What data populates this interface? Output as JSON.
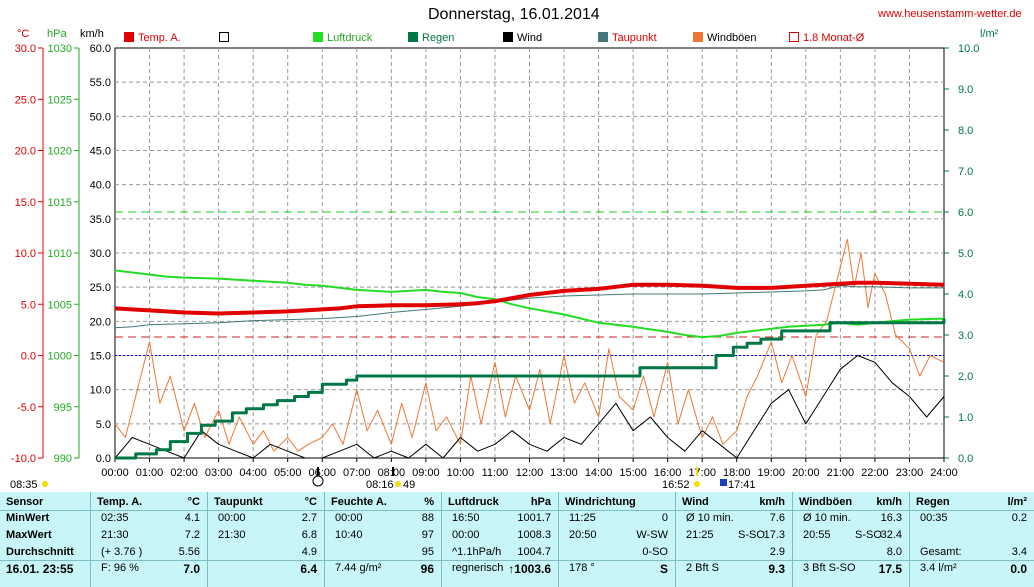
{
  "header": {
    "title": "Donnerstag, 16.01.2014",
    "site": "www.heusenstamm-wetter.de",
    "unit_temp": "°C",
    "unit_pressure": "hPa",
    "unit_wind": "km/h",
    "unit_rain": "l/m²"
  },
  "legend": [
    {
      "label": "Temp. A.",
      "color": "#e00000",
      "filled": true
    },
    {
      "label": "",
      "color": "#000000",
      "filled": false
    },
    {
      "label": "Luftdruck",
      "color": "#22dd22",
      "filled": true
    },
    {
      "label": "Regen",
      "color": "#007744",
      "filled": true
    },
    {
      "label": "Wind",
      "color": "#000000",
      "filled": true
    },
    {
      "label": "Taupunkt",
      "color": "#447777",
      "filled": true
    },
    {
      "label": "Windböen",
      "color": "#ee7733",
      "filled": true
    },
    {
      "label": "1.8 Monat-Ø",
      "color": "#e00000",
      "filled": false
    }
  ],
  "chart_data": {
    "type": "line",
    "x_ticks": [
      "00:00",
      "01:00",
      "02:00",
      "03:00",
      "04:00",
      "05:00",
      "06:00",
      "07:00",
      "08:00",
      "09:00",
      "10:00",
      "11:00",
      "12:00",
      "13:00",
      "14:00",
      "15:00",
      "16:00",
      "17:00",
      "18:00",
      "19:00",
      "20:00",
      "21:00",
      "22:00",
      "23:00",
      "24:00"
    ],
    "axes": {
      "temp": {
        "label": "°C",
        "range": [
          -10,
          30
        ],
        "ticks": [
          "30.0",
          "25.0",
          "20.0",
          "15.0",
          "10.0",
          "5.0",
          "0.0",
          "-5.0",
          "-10.0"
        ]
      },
      "pressure": {
        "label": "hPa",
        "range": [
          990,
          1030
        ],
        "ticks": [
          "1030",
          "1025",
          "1020",
          "1015",
          "1010",
          "1005",
          "1000",
          "995",
          "990"
        ]
      },
      "wind": {
        "label": "km/h",
        "range": [
          0,
          60
        ],
        "ticks": [
          "60.0",
          "55.0",
          "50.0",
          "45.0",
          "40.0",
          "35.0",
          "30.0",
          "25.0",
          "20.0",
          "15.0",
          "10.0",
          "5.0",
          "0.0"
        ]
      },
      "rain": {
        "label": "l/m²",
        "range": [
          0,
          10
        ],
        "ticks": [
          "10.0",
          "9.0",
          "8.0",
          "7.0",
          "6.0",
          "5.0",
          "4.0",
          "3.0",
          "2.0",
          "1.0",
          "0.0"
        ]
      }
    },
    "reference_lines": [
      {
        "name": "rain-6",
        "axis": "rain",
        "value": 6.0,
        "color": "#22cc22"
      },
      {
        "name": "temp-1.8",
        "axis": "temp",
        "value": 1.8,
        "color": "#cc2222"
      },
      {
        "name": "temp-0",
        "axis": "temp",
        "value": 0.0,
        "color": "#0000cc"
      }
    ],
    "series": [
      {
        "name": "Temp. A.",
        "axis": "temp",
        "color": "#e00000",
        "width": 4,
        "x": [
          0,
          1,
          2,
          3,
          4,
          5,
          6,
          6.5,
          7,
          8,
          9,
          10,
          10.5,
          11,
          11.5,
          12,
          13,
          14,
          14.5,
          15,
          16,
          17,
          18,
          19,
          20,
          20.5,
          21,
          21.5,
          22,
          23,
          24
        ],
        "y": [
          4.6,
          4.4,
          4.2,
          4.1,
          4.2,
          4.3,
          4.5,
          4.6,
          4.8,
          4.9,
          4.9,
          5.0,
          5.1,
          5.3,
          5.6,
          5.9,
          6.3,
          6.5,
          6.7,
          6.9,
          6.9,
          6.8,
          6.6,
          6.6,
          6.8,
          6.9,
          7.0,
          7.1,
          7.1,
          7.0,
          6.9
        ]
      },
      {
        "name": "Taupunkt",
        "axis": "temp",
        "color": "#447777",
        "width": 1,
        "x": [
          0,
          0.5,
          1,
          2,
          3,
          4,
          5,
          6,
          7,
          8,
          9,
          10,
          11,
          12,
          13,
          14,
          15,
          16,
          17,
          18,
          19,
          20,
          20.5,
          21,
          21.5,
          22,
          23,
          24
        ],
        "y": [
          2.7,
          2.8,
          3.0,
          3.1,
          3.2,
          3.4,
          3.5,
          3.6,
          3.8,
          4.2,
          4.5,
          4.8,
          5.2,
          5.6,
          5.8,
          5.9,
          6.0,
          6.0,
          6.0,
          6.1,
          6.2,
          6.3,
          6.4,
          6.8,
          6.7,
          6.7,
          6.6,
          6.6
        ]
      },
      {
        "name": "Luftdruck",
        "axis": "pressure",
        "color": "#22dd22",
        "width": 2,
        "x": [
          0,
          0.5,
          1,
          1.5,
          2,
          3,
          4,
          5,
          5.5,
          6,
          6.5,
          7,
          7.5,
          8,
          8.5,
          9,
          9.5,
          10,
          10.5,
          11,
          11.5,
          12,
          12.5,
          13,
          13.5,
          14,
          15,
          16,
          16.5,
          17,
          17.5,
          18,
          19,
          19.5,
          20,
          20.5,
          21,
          21.5,
          22,
          23,
          24
        ],
        "y": [
          1008.3,
          1008.1,
          1007.9,
          1007.7,
          1007.6,
          1007.5,
          1007.3,
          1007.1,
          1006.9,
          1006.8,
          1006.6,
          1006.4,
          1006.3,
          1006.2,
          1006.3,
          1006.4,
          1006.2,
          1006.1,
          1005.7,
          1005.5,
          1005.0,
          1004.6,
          1004.3,
          1004.0,
          1003.6,
          1003.2,
          1002.8,
          1002.3,
          1002.0,
          1001.8,
          1001.9,
          1002.2,
          1002.6,
          1002.8,
          1002.9,
          1003.0,
          1003.2,
          1003.0,
          1003.2,
          1003.5,
          1003.6
        ]
      },
      {
        "name": "Regen",
        "axis": "rain",
        "color": "#007744",
        "width": 3,
        "step": true,
        "x": [
          0,
          0.6,
          1.2,
          1.6,
          2.1,
          2.5,
          2.9,
          3.4,
          3.8,
          4.3,
          4.7,
          5.2,
          5.6,
          6.0,
          6.7,
          7.0,
          13.6,
          14.2,
          15.2,
          16.7,
          17.4,
          17.9,
          18.3,
          18.7,
          19.3,
          20.7,
          24
        ],
        "y": [
          0,
          0.1,
          0.2,
          0.4,
          0.6,
          0.8,
          0.9,
          1.1,
          1.2,
          1.3,
          1.4,
          1.5,
          1.6,
          1.8,
          1.9,
          2.0,
          2.0,
          2.0,
          2.2,
          2.2,
          2.5,
          2.7,
          2.8,
          2.9,
          3.1,
          3.3,
          3.4
        ]
      },
      {
        "name": "Wind",
        "axis": "wind",
        "color": "#000000",
        "width": 1,
        "x": [
          0,
          0.5,
          1,
          1.5,
          2,
          2.5,
          3,
          3.5,
          4,
          4.5,
          5,
          5.5,
          6,
          6.5,
          7,
          7.5,
          8,
          8.5,
          9,
          9.5,
          10,
          10.5,
          11,
          11.5,
          12,
          12.5,
          13,
          13.5,
          14,
          14.5,
          15,
          15.5,
          16,
          16.5,
          17,
          17.5,
          18,
          18.5,
          19,
          19.5,
          20,
          20.5,
          21,
          21.5,
          22,
          22.5,
          23,
          23.5,
          24
        ],
        "y": [
          0,
          3,
          2,
          1,
          0,
          4,
          2,
          1,
          0,
          2,
          1,
          0,
          0,
          1,
          2,
          0,
          1,
          0,
          2,
          0,
          3,
          1,
          2,
          4,
          2,
          1,
          3,
          2,
          5,
          8,
          4,
          6,
          3,
          1,
          4,
          2,
          0,
          4,
          8,
          10,
          5,
          9,
          13,
          15,
          14,
          11,
          9,
          6,
          9
        ]
      },
      {
        "name": "Windböen",
        "axis": "wind",
        "color": "#ee7733",
        "width": 1,
        "x": [
          0,
          0.3,
          0.6,
          1,
          1.3,
          1.6,
          2,
          2.3,
          2.6,
          3,
          3.3,
          3.6,
          4,
          4.3,
          4.6,
          5,
          5.3,
          5.6,
          6,
          6.3,
          6.6,
          7,
          7.3,
          7.6,
          8,
          8.3,
          8.6,
          9,
          9.3,
          9.6,
          10,
          10.3,
          10.6,
          11,
          11.3,
          11.6,
          12,
          12.3,
          12.6,
          13,
          13.3,
          13.6,
          14,
          14.3,
          14.6,
          15,
          15.3,
          15.6,
          16,
          16.3,
          16.6,
          17,
          17.3,
          17.6,
          18,
          18.3,
          18.6,
          19,
          19.3,
          19.6,
          20,
          20.3,
          20.6,
          21,
          21.2,
          21.4,
          21.6,
          21.8,
          22,
          22.3,
          22.6,
          23,
          23.3,
          23.6,
          24
        ],
        "y": [
          5,
          3,
          9,
          17,
          8,
          12,
          4,
          8,
          3,
          7,
          2,
          6,
          2,
          4,
          1,
          3,
          1,
          2,
          3,
          5,
          2,
          10,
          4,
          7,
          2,
          8,
          3,
          11,
          4,
          6,
          2,
          12,
          5,
          14,
          6,
          12,
          7,
          13,
          5,
          15,
          8,
          11,
          6,
          16,
          9,
          7,
          12,
          6,
          14,
          5,
          10,
          3,
          6,
          2,
          4,
          9,
          12,
          17,
          11,
          15,
          9,
          18,
          20,
          28,
          32,
          25,
          30,
          22,
          27,
          24,
          18,
          16,
          12,
          15,
          14
        ]
      }
    ],
    "markers": {
      "sunrise": "08:35",
      "sunset": "16:52",
      "moon_time": "08:16",
      "moon_value": "49",
      "moon_set": "17:41"
    }
  },
  "table": {
    "row_labels": {
      "h": "Sensor",
      "min": "MinWert",
      "max": "MaxWert",
      "avg": "Durchschnitt",
      "now": "16.01. 23:55"
    },
    "temp": {
      "h1": "Temp. A.",
      "h2": "°C",
      "min_t": "02:35",
      "min_v": "4.1",
      "max_t": "21:30",
      "max_v": "7.2",
      "avg_t": "(+ 3.76 )",
      "avg_v": "5.56",
      "now_t": "F: 96 %",
      "now_v": "7.0"
    },
    "dew": {
      "h1": "Taupunkt",
      "h2": "°C",
      "min_t": "00:00",
      "min_v": "2.7",
      "max_t": "21:30",
      "max_v": "6.8",
      "avg_v": "4.9",
      "now_v": "6.4"
    },
    "hum": {
      "h1": "Feuchte A.",
      "h2": "%",
      "min_t": "00:00",
      "min_v": "88",
      "max_t": "10:40",
      "max_v": "97",
      "avg_v": "95",
      "now_t": "7.44 g/m²",
      "now_v": "96"
    },
    "pres": {
      "h1": "Luftdruck",
      "h2": "hPa",
      "min_t": "16:50",
      "min_v": "1001.7",
      "max_t": "00:00",
      "max_v": "1008.3",
      "avg_t": "^1.1hPa/h",
      "avg_v": "1004.7",
      "now_t": "regnerisch",
      "now_v": "↑1003.6"
    },
    "dir": {
      "h1": "Windrichtung",
      "min_t": "11:25",
      "min_v": "0",
      "max_t": "20:50",
      "max_v": "W-SW",
      "avg_v": "0-SO",
      "now_t": "178 °",
      "now_v": "S"
    },
    "wind": {
      "h1": "Wind",
      "h2": "km/h",
      "min_t": "Ø 10 min.",
      "min_v": "7.6",
      "max_t": "21:25",
      "max_m": "S-SO",
      "max_v": "17.3",
      "avg_v": "2.9",
      "now_t": "2 Bft S",
      "now_v": "9.3"
    },
    "gust": {
      "h1": "Windböen",
      "h2": "km/h",
      "min_t": "Ø 10 min.",
      "min_v": "16.3",
      "max_t": "20:55",
      "max_m": "S-SO",
      "max_v": "32.4",
      "avg_v": "8.0",
      "now_t": "3 Bft S-SO",
      "now_v": "17.5"
    },
    "rain": {
      "h1": "Regen",
      "h2": "l/m²",
      "min_t": "00:35",
      "min_v": "0.2",
      "avg_t": "Gesamt:",
      "avg_v": "3.4",
      "now_t": "3.4 l/m²",
      "now_v": "0.0"
    }
  }
}
